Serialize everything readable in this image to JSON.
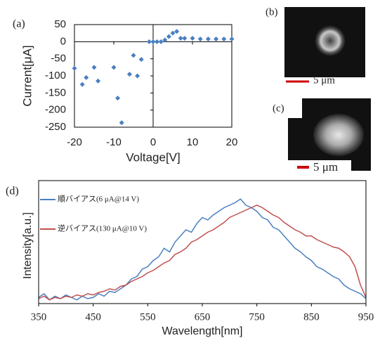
{
  "chart_data": [
    {
      "type": "scatter",
      "panel_label": "(a)",
      "x_label": "Voltage[V]",
      "y_label": "Current[μA]",
      "color": "#4a7fc1",
      "x": [
        -20,
        -18,
        -17,
        -15,
        -14,
        -10,
        -9,
        -8,
        -6,
        -5,
        -4,
        -3,
        -1,
        0,
        1,
        2,
        3,
        4,
        5,
        6,
        7,
        8,
        10,
        12,
        14,
        16,
        18,
        20
      ],
      "values": [
        -78,
        -125,
        -105,
        -75,
        -115,
        -75,
        -165,
        -237,
        -95,
        -40,
        -100,
        -52,
        0,
        0,
        0,
        0,
        5,
        15,
        25,
        30,
        10,
        10,
        10,
        8,
        8,
        8,
        8,
        8
      ],
      "xlim": [
        -20,
        20
      ],
      "ylim": [
        -250,
        50
      ],
      "xticks": [
        -20,
        -10,
        0,
        10,
        20
      ],
      "yticks": [
        50,
        0,
        -50,
        -100,
        -150,
        -200,
        -250
      ]
    },
    {
      "type": "line",
      "panel_label": "(d)",
      "x_label": "Wavelength[nm]",
      "y_label": "Intensity[a.u.]",
      "x": [
        350,
        360,
        370,
        380,
        390,
        400,
        410,
        420,
        430,
        440,
        450,
        460,
        470,
        480,
        490,
        500,
        510,
        520,
        530,
        540,
        550,
        560,
        570,
        580,
        590,
        600,
        610,
        620,
        630,
        640,
        650,
        660,
        670,
        680,
        690,
        700,
        710,
        720,
        730,
        740,
        750,
        760,
        770,
        780,
        790,
        800,
        810,
        820,
        830,
        840,
        850,
        860,
        870,
        880,
        890,
        900,
        910,
        920,
        930,
        940,
        950
      ],
      "series": [
        {
          "name": "順バイアス(6 μA@14 V)",
          "color": "#4a7fc1",
          "values": [
            0.05,
            0.08,
            0.03,
            0.06,
            0.04,
            0.07,
            0.05,
            0.03,
            0.06,
            0.04,
            0.05,
            0.08,
            0.06,
            0.1,
            0.09,
            0.12,
            0.15,
            0.2,
            0.22,
            0.28,
            0.3,
            0.35,
            0.38,
            0.45,
            0.42,
            0.5,
            0.55,
            0.6,
            0.58,
            0.65,
            0.7,
            0.68,
            0.72,
            0.75,
            0.78,
            0.8,
            0.82,
            0.85,
            0.8,
            0.78,
            0.75,
            0.7,
            0.68,
            0.62,
            0.6,
            0.55,
            0.5,
            0.45,
            0.42,
            0.38,
            0.35,
            0.3,
            0.28,
            0.25,
            0.22,
            0.2,
            0.15,
            0.12,
            0.1,
            0.08,
            0.04
          ]
        },
        {
          "name": "逆バイアス(130 μA@10 V)",
          "color": "#c0504d",
          "values": [
            0.04,
            0.06,
            0.03,
            0.05,
            0.04,
            0.06,
            0.05,
            0.07,
            0.06,
            0.08,
            0.07,
            0.09,
            0.1,
            0.12,
            0.11,
            0.14,
            0.15,
            0.18,
            0.2,
            0.22,
            0.25,
            0.27,
            0.3,
            0.33,
            0.35,
            0.4,
            0.42,
            0.45,
            0.5,
            0.52,
            0.55,
            0.58,
            0.6,
            0.63,
            0.66,
            0.7,
            0.72,
            0.74,
            0.76,
            0.78,
            0.8,
            0.78,
            0.75,
            0.72,
            0.7,
            0.66,
            0.63,
            0.6,
            0.58,
            0.55,
            0.55,
            0.52,
            0.5,
            0.48,
            0.46,
            0.45,
            0.42,
            0.38,
            0.3,
            0.15,
            0.05
          ]
        }
      ],
      "xlim": [
        350,
        950
      ],
      "ylim": [
        0,
        1
      ],
      "xticks": [
        350,
        450,
        550,
        650,
        750,
        850,
        950
      ]
    }
  ],
  "images": [
    {
      "label": "(b)",
      "scale": "5 μm"
    },
    {
      "label": "(c)",
      "scale": "5 μm"
    }
  ]
}
